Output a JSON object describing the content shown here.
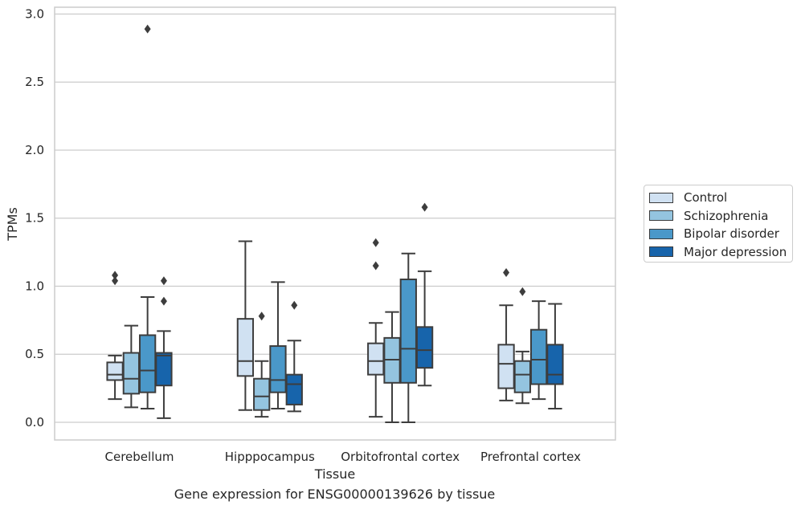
{
  "chart_data": {
    "type": "box",
    "xlabel": "Tissue",
    "ylabel": "TPMs",
    "caption": "Gene expression for ENSG00000139626 by tissue",
    "ylim": [
      -0.13,
      3.05
    ],
    "yticks": [
      "0.0",
      "0.5",
      "1.0",
      "1.5",
      "2.0",
      "2.5",
      "3.0"
    ],
    "yticks_values": [
      0,
      0.5,
      1.0,
      1.5,
      2.0,
      2.5,
      3.0
    ],
    "grid": "horizontal",
    "legend_position": "right",
    "categories": [
      "Cerebellum",
      "Hipppocampus",
      "Orbitofrontal cortex",
      "Prefrontal cortex"
    ],
    "series": [
      {
        "name": "Control",
        "color": "#d0e1f2",
        "boxes": [
          {
            "min": 0.17,
            "q1": 0.31,
            "median": 0.35,
            "q3": 0.44,
            "max": 0.49,
            "outliers": [
              1.04,
              1.08
            ]
          },
          {
            "min": 0.09,
            "q1": 0.34,
            "median": 0.45,
            "q3": 0.76,
            "max": 1.33,
            "outliers": []
          },
          {
            "min": 0.04,
            "q1": 0.35,
            "median": 0.45,
            "q3": 0.58,
            "max": 0.73,
            "outliers": [
              1.15,
              1.32
            ]
          },
          {
            "min": 0.16,
            "q1": 0.25,
            "median": 0.43,
            "q3": 0.57,
            "max": 0.86,
            "outliers": [
              1.1
            ]
          }
        ]
      },
      {
        "name": "Schizophrenia",
        "color": "#94c4df",
        "boxes": [
          {
            "min": 0.11,
            "q1": 0.21,
            "median": 0.32,
            "q3": 0.51,
            "max": 0.71,
            "outliers": []
          },
          {
            "min": 0.04,
            "q1": 0.09,
            "median": 0.19,
            "q3": 0.32,
            "max": 0.45,
            "outliers": [
              0.78
            ]
          },
          {
            "min": 0.0,
            "q1": 0.29,
            "median": 0.46,
            "q3": 0.62,
            "max": 0.81,
            "outliers": []
          },
          {
            "min": 0.14,
            "q1": 0.22,
            "median": 0.35,
            "q3": 0.45,
            "max": 0.52,
            "outliers": [
              0.96
            ]
          }
        ]
      },
      {
        "name": "Bipolar disorder",
        "color": "#4a98c9",
        "boxes": [
          {
            "min": 0.1,
            "q1": 0.22,
            "median": 0.38,
            "q3": 0.64,
            "max": 0.92,
            "outliers": [
              2.89
            ]
          },
          {
            "min": 0.1,
            "q1": 0.22,
            "median": 0.31,
            "q3": 0.56,
            "max": 1.03,
            "outliers": []
          },
          {
            "min": 0.0,
            "q1": 0.29,
            "median": 0.54,
            "q3": 1.05,
            "max": 1.24,
            "outliers": []
          },
          {
            "min": 0.17,
            "q1": 0.28,
            "median": 0.46,
            "q3": 0.68,
            "max": 0.89,
            "outliers": []
          }
        ]
      },
      {
        "name": "Major depression",
        "color": "#1764ab",
        "boxes": [
          {
            "min": 0.03,
            "q1": 0.27,
            "median": 0.49,
            "q3": 0.51,
            "max": 0.67,
            "outliers": [
              0.89,
              1.04
            ]
          },
          {
            "min": 0.08,
            "q1": 0.13,
            "median": 0.28,
            "q3": 0.35,
            "max": 0.6,
            "outliers": [
              0.86
            ]
          },
          {
            "min": 0.27,
            "q1": 0.4,
            "median": 0.53,
            "q3": 0.7,
            "max": 1.11,
            "outliers": [
              1.58
            ]
          },
          {
            "min": 0.1,
            "q1": 0.28,
            "median": 0.35,
            "q3": 0.57,
            "max": 0.87,
            "outliers": []
          }
        ]
      }
    ]
  }
}
